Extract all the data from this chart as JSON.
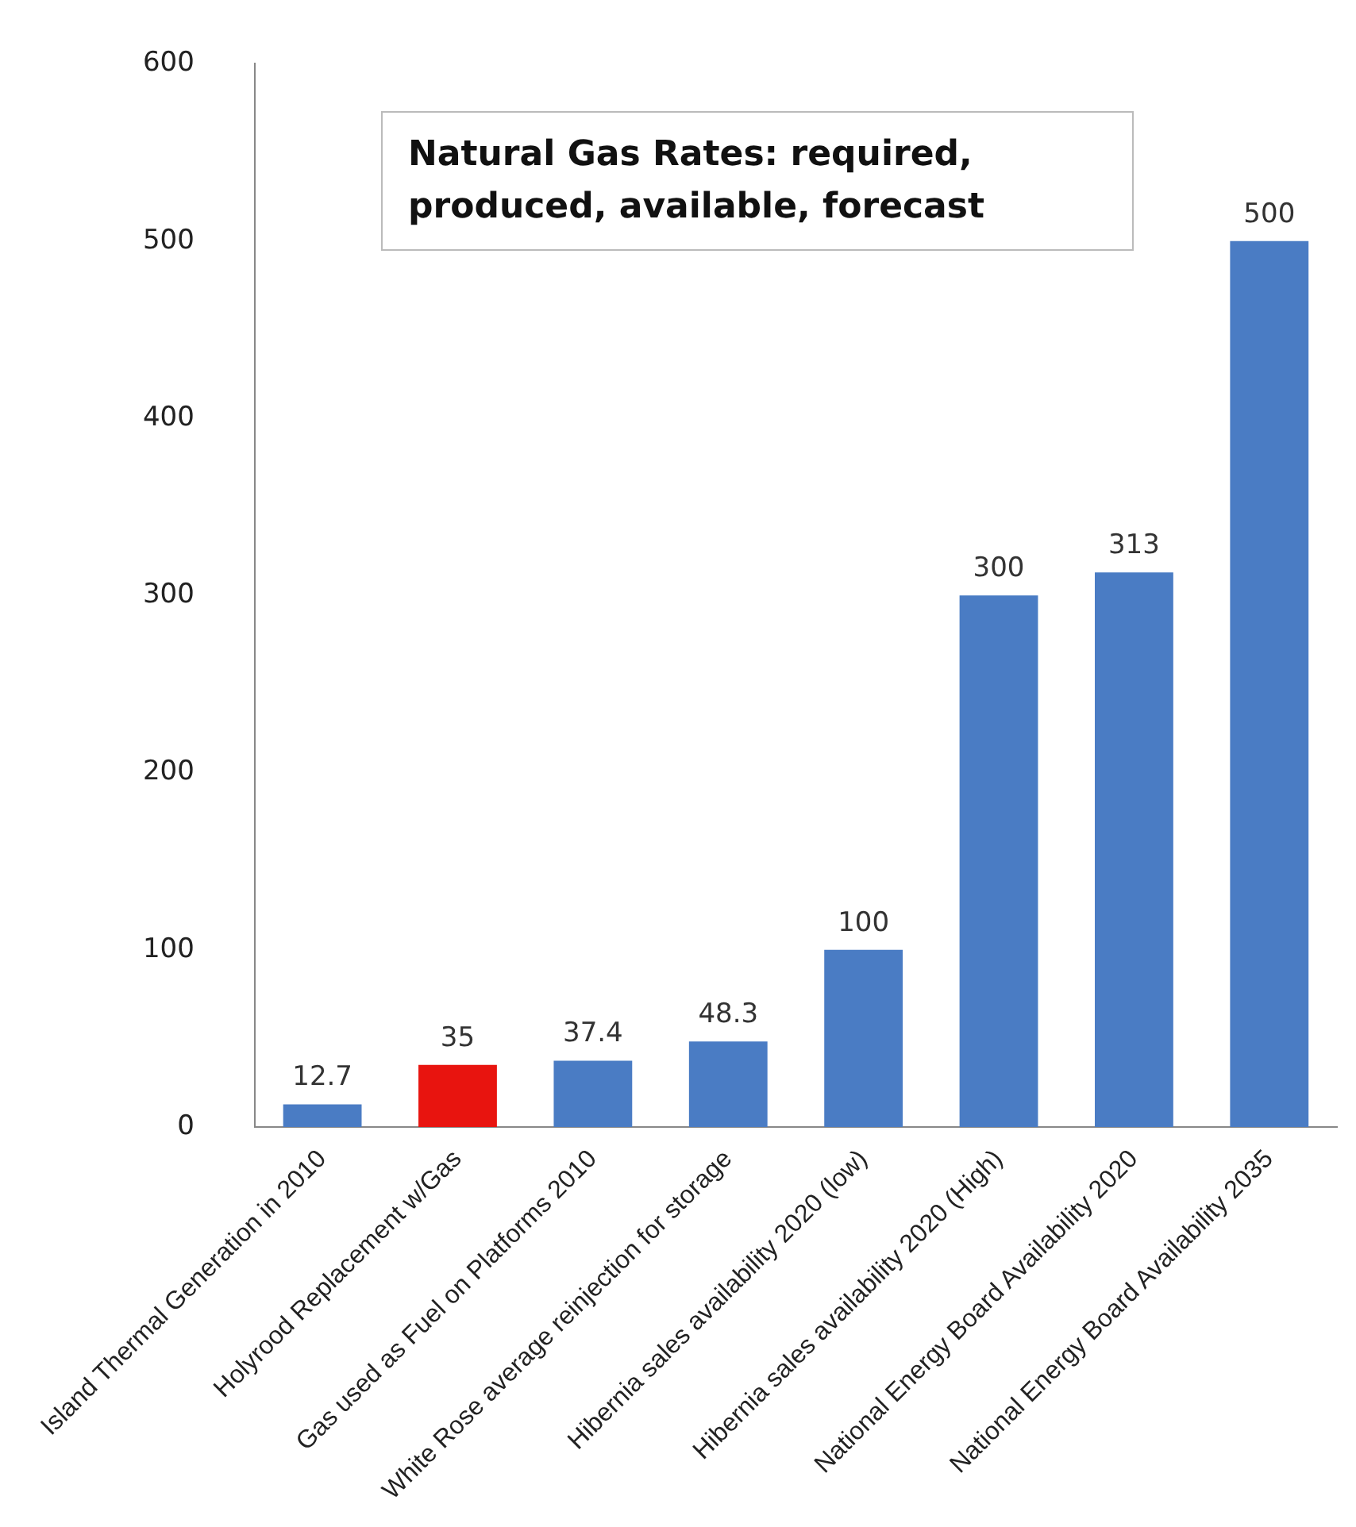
{
  "chart_data": {
    "type": "bar",
    "title": "Natural Gas Rates: required, produced, available, forecast",
    "categories": [
      "Island Thermal Generation in 2010",
      "Holyrood Replacement w/Gas",
      "Gas used as Fuel on Platforms 2010",
      "White Rose average reinjection for storage",
      "Hibernia sales availability 2020 (low)",
      "Hibernia sales availability 2020 (High)",
      "National Energy Board Availability 2020",
      "National Energy Board Availability 2035"
    ],
    "values": [
      12.7,
      35,
      37.4,
      48.3,
      100,
      300,
      313,
      500
    ],
    "colors": [
      "#4a7cc4",
      "#e8140f",
      "#4a7cc4",
      "#4a7cc4",
      "#4a7cc4",
      "#4a7cc4",
      "#4a7cc4",
      "#4a7cc4"
    ],
    "ylim": [
      0,
      600
    ],
    "yticks": [
      0,
      100,
      200,
      300,
      400,
      500,
      600
    ],
    "grid": false,
    "legend": false,
    "data_labels": true
  }
}
